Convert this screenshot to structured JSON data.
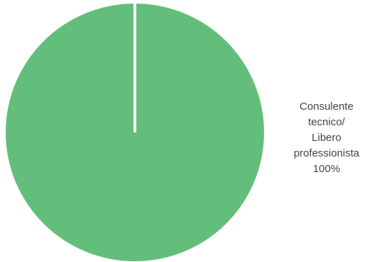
{
  "chart_data": {
    "type": "pie",
    "slices": [
      {
        "label_lines": [
          "Consulente",
          "tecnico/",
          "Libero",
          "professionista"
        ],
        "percent_label": "100%",
        "value": 100,
        "color": "#63be7b"
      }
    ],
    "separator_color": "#ffffff",
    "legend": "none"
  }
}
